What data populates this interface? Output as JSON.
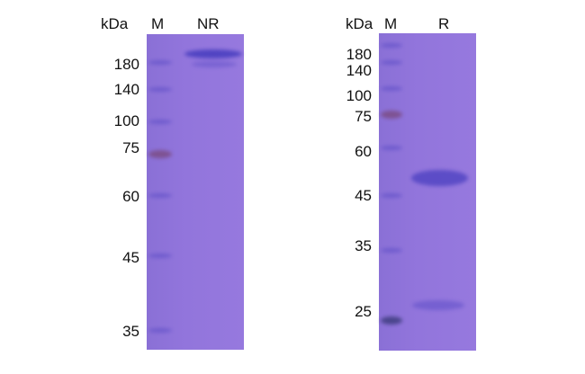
{
  "gels": [
    {
      "unit_label": "kDa",
      "marker_lane_label": "M",
      "sample_lane_label": "NR",
      "marker_labels": [
        "180",
        "140",
        "100",
        "75",
        "60",
        "45",
        "35"
      ],
      "sample_bands_kda": [
        "~190 (above 180)"
      ]
    },
    {
      "unit_label": "kDa",
      "marker_lane_label": "M",
      "sample_lane_label": "R",
      "marker_labels": [
        "180",
        "140",
        "100",
        "75",
        "60",
        "45",
        "35",
        "25"
      ],
      "sample_bands_kda": [
        "~50",
        "~25"
      ]
    }
  ],
  "colors": {
    "gel": "#9275dc",
    "band": "#4a3fc0",
    "marker_75": "#7a4a80"
  }
}
